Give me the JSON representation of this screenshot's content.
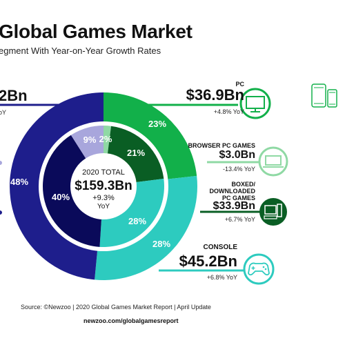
{
  "header": {
    "title": "Global Games Market",
    "subtitle": "egment With Year-on-Year Growth Rates"
  },
  "left_cut": {
    "value": "2Bn",
    "growth": "oY"
  },
  "center": {
    "line1": "2020 TOTAL",
    "value": "$159.3Bn",
    "growth": "+9.3%",
    "growth_unit": "YoY"
  },
  "segments": {
    "pc": {
      "name": "PC",
      "value": "$36.9Bn",
      "growth": "+4.8% YoY"
    },
    "browser": {
      "name": "BROWSER PC GAMES",
      "value": "$3.0Bn",
      "growth": "-13.4% YoY"
    },
    "boxed": {
      "name_lines": [
        "BOXED/",
        "DOWNLOADED",
        "PC GAMES"
      ],
      "value": "$33.9Bn",
      "growth": "+6.7% YoY"
    },
    "console": {
      "name": "CONSOLE",
      "value": "$45.2Bn",
      "growth": "+6.8% YoY"
    }
  },
  "footer": {
    "source": "Source: ©Newzoo | 2020 Global Games Market Report | April Update",
    "url": "newzoo.com/globalgamesreport"
  },
  "colors": {
    "mobile": "#1e1e8c",
    "pc": "#12b04a",
    "console": "#2dcbbf",
    "tablet_inner": "#a8a6dc",
    "smartphone_inner": "#0a0a5a",
    "browser_inner": "#8fd9a4",
    "boxed_inner": "#0a5e24"
  },
  "chart_data": {
    "type": "pie",
    "title": "Global Games Market",
    "total_label": "2020 TOTAL",
    "total": 159.3,
    "outer_ring": [
      {
        "label": "48%",
        "share": 48,
        "color": "#1e1e8c"
      },
      {
        "label": "23%",
        "share": 23,
        "color": "#12b04a"
      },
      {
        "label": "28%",
        "share": 28,
        "color": "#2dcbbf"
      }
    ],
    "inner_ring": [
      {
        "label": "40%",
        "share": 40,
        "color": "#0a0a5a"
      },
      {
        "label": "9%",
        "share": 9,
        "color": "#a8a6dc"
      },
      {
        "label": "2%",
        "share": 2,
        "color": "#8fd9a4"
      },
      {
        "label": "21%",
        "share": 21,
        "color": "#0a5e24"
      },
      {
        "label": "28%",
        "share": 28,
        "color": "#2dcbbf"
      }
    ],
    "segments": [
      {
        "name": "PC",
        "value": 36.9,
        "growth": 4.8
      },
      {
        "name": "BROWSER PC GAMES",
        "value": 3.0,
        "growth": -13.4
      },
      {
        "name": "BOXED/ DOWNLOADED PC GAMES",
        "value": 33.9,
        "growth": 6.7
      },
      {
        "name": "CONSOLE",
        "value": 45.2,
        "growth": 6.8
      }
    ]
  }
}
